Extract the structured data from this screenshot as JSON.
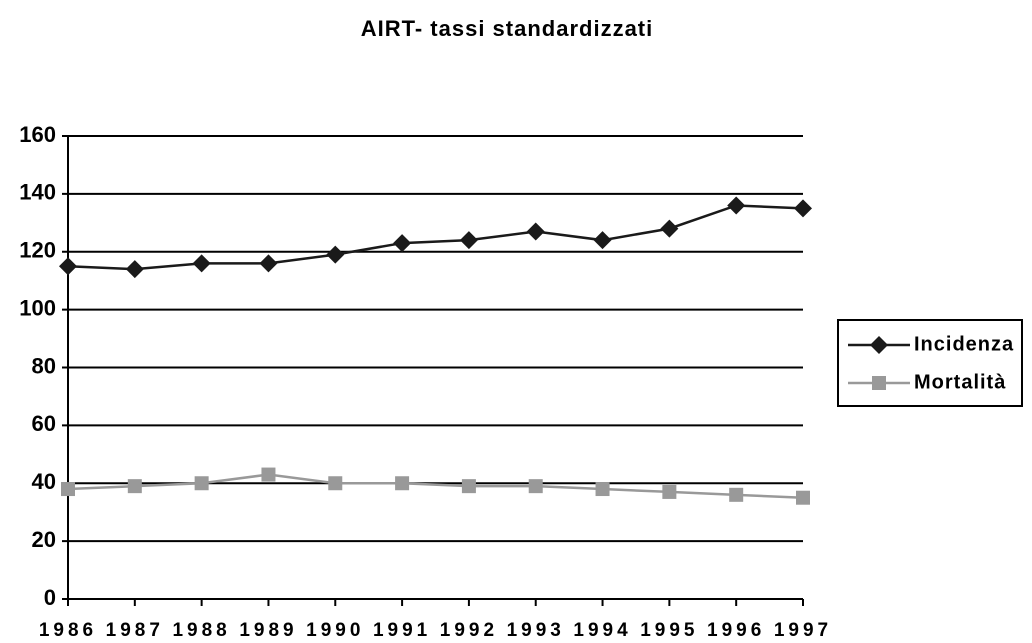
{
  "chart_data": {
    "type": "line",
    "title": "AIRT- tassi standardizzati",
    "categories": [
      "1986",
      "1987",
      "1988",
      "1989",
      "1990",
      "1991",
      "1992",
      "1993",
      "1994",
      "1995",
      "1996",
      "1997"
    ],
    "series": [
      {
        "name": "Incidenza",
        "color": "#1a1a1a",
        "marker": "diamond",
        "values": [
          115,
          114,
          116,
          116,
          119,
          123,
          124,
          127,
          124,
          128,
          136,
          135
        ]
      },
      {
        "name": "Mortalità",
        "color": "#999999",
        "marker": "square",
        "values": [
          38,
          39,
          40,
          43,
          40,
          40,
          39,
          39,
          38,
          37,
          36,
          35
        ]
      }
    ],
    "ylim": [
      0,
      160
    ],
    "yticks": [
      0,
      20,
      40,
      60,
      80,
      100,
      120,
      140,
      160
    ],
    "grid": true,
    "legend": "right"
  }
}
